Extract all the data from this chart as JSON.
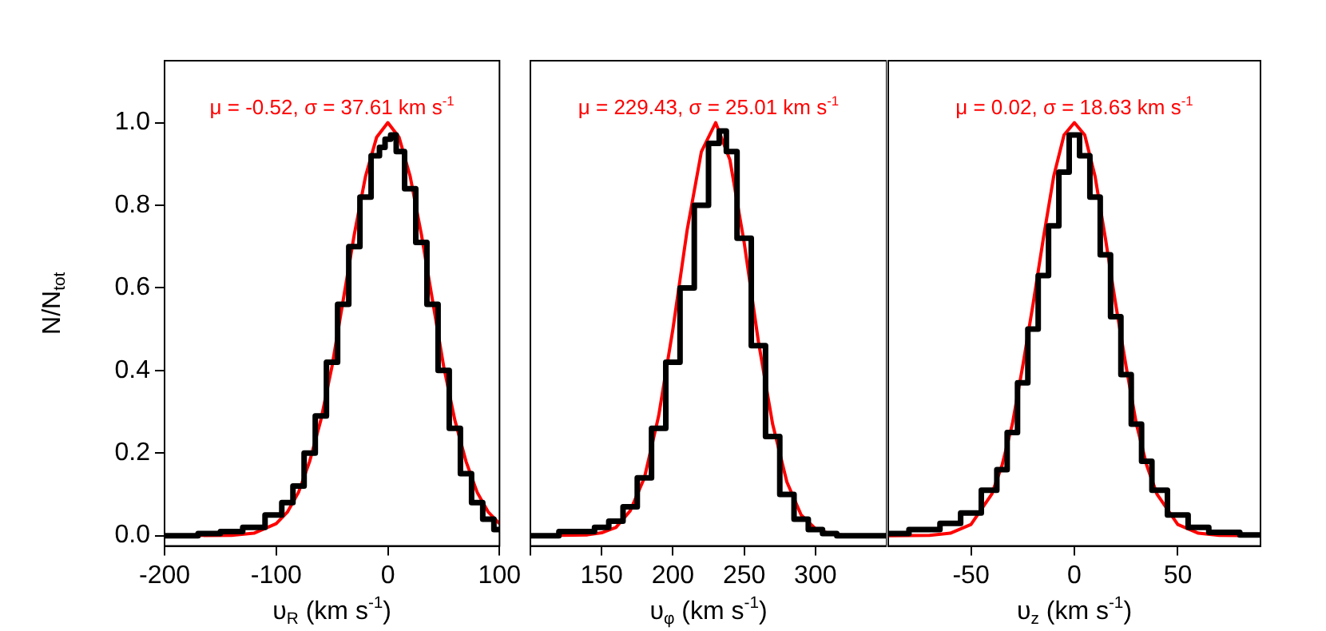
{
  "chart_data": [
    {
      "type": "step",
      "title": "μ = -0.52, σ = 37.61 km s$^{-1}$",
      "xlabel": "υ$_{R}$ (km s$^{-1}$)",
      "ylabel": "N/N$_{tot}$",
      "xlim": [
        -200,
        100
      ],
      "xticks": [
        -200,
        -100,
        0,
        100
      ],
      "ylim": [
        -0.025,
        1.15
      ],
      "yticks": [
        {
          "value": 0,
          "label": "0.0"
        },
        0.2,
        0.4,
        0.6,
        0.8,
        {
          "value": 1,
          "label": "1.0"
        }
      ],
      "grid": false,
      "series": [
        {
          "color": "#000000",
          "x": [
            -200,
            -180,
            -160,
            -140,
            -120,
            -100,
            -90,
            -80,
            -70,
            -60,
            -50,
            -40,
            -30,
            -20,
            -10,
            -5,
            0,
            5,
            10,
            20,
            30,
            40,
            50,
            60,
            70,
            80,
            90,
            100
          ],
          "values": [
            0.0,
            0.0,
            0.005,
            0.01,
            0.02,
            0.05,
            0.08,
            0.12,
            0.2,
            0.29,
            0.42,
            0.56,
            0.7,
            0.82,
            0.92,
            0.94,
            0.96,
            0.97,
            0.93,
            0.84,
            0.71,
            0.56,
            0.4,
            0.26,
            0.15,
            0.08,
            0.04,
            0.015
          ]
        },
        {
          "type": "line",
          "color": "#ff0000",
          "x": [
            -200,
            -140,
            -120,
            -100,
            -90,
            -80,
            -70,
            -60,
            -50,
            -40,
            -30,
            -20,
            -10,
            0,
            10,
            20,
            30,
            40,
            50,
            60,
            70,
            80,
            90,
            100
          ],
          "values": [
            0,
            0.001,
            0.006,
            0.029,
            0.057,
            0.105,
            0.18,
            0.28,
            0.41,
            0.57,
            0.73,
            0.87,
            0.965,
            1.0,
            0.965,
            0.87,
            0.73,
            0.57,
            0.41,
            0.28,
            0.18,
            0.105,
            0.057,
            0.029
          ]
        }
      ]
    },
    {
      "type": "step",
      "title": "μ = 229.43, σ = 25.01 km s$^{-1}$",
      "xlabel": "υ$_{φ}$ (km s$^{-1}$)",
      "xlim": [
        100,
        350
      ],
      "xticks": [
        {
          "value": 100,
          "label": null
        },
        150,
        200,
        250,
        300
      ],
      "ylim": [
        -0.025,
        1.15
      ],
      "yticks": [
        0,
        0.2,
        0.4,
        0.6,
        0.8,
        1
      ],
      "tick_labels": "x",
      "grid": false,
      "series": [
        {
          "color": "#000000",
          "x": [
            100,
            140,
            150,
            160,
            170,
            180,
            190,
            200,
            210,
            220,
            230,
            235,
            240,
            250,
            260,
            270,
            280,
            290,
            300,
            310,
            320,
            350
          ],
          "values": [
            0,
            0.01,
            0.02,
            0.035,
            0.07,
            0.14,
            0.26,
            0.42,
            0.6,
            0.8,
            0.95,
            0.98,
            0.93,
            0.72,
            0.46,
            0.24,
            0.1,
            0.04,
            0.015,
            0.005,
            0,
            0
          ]
        },
        {
          "type": "line",
          "color": "#ff0000",
          "x": [
            100,
            140,
            150,
            160,
            170,
            180,
            190,
            200,
            210,
            220,
            230,
            240,
            250,
            260,
            270,
            280,
            290,
            300,
            310,
            320,
            350
          ],
          "values": [
            0,
            0.002,
            0.007,
            0.02,
            0.06,
            0.14,
            0.29,
            0.5,
            0.74,
            0.93,
            1.0,
            0.91,
            0.71,
            0.47,
            0.27,
            0.13,
            0.05,
            0.017,
            0.005,
            0.001,
            0
          ]
        }
      ]
    },
    {
      "type": "step",
      "title": "μ = 0.02, σ = 18.63 km s$^{-1}$",
      "xlabel": "υ$_{z}$ (km s$^{-1}$)",
      "xlim": [
        -90,
        90
      ],
      "xticks": [
        -50,
        0,
        50
      ],
      "ylim": [
        -0.025,
        1.15
      ],
      "yticks": [
        0,
        0.2,
        0.4,
        0.6,
        0.8,
        1
      ],
      "tick_labels": "x",
      "grid": false,
      "series": [
        {
          "color": "#000000",
          "x": [
            -90,
            -70,
            -60,
            -50,
            -40,
            -35,
            -30,
            -25,
            -20,
            -15,
            -10,
            -5,
            0,
            5,
            10,
            15,
            20,
            25,
            30,
            35,
            40,
            50,
            60,
            70,
            90
          ],
          "values": [
            0.005,
            0.015,
            0.03,
            0.055,
            0.11,
            0.16,
            0.25,
            0.37,
            0.5,
            0.63,
            0.75,
            0.88,
            0.97,
            0.92,
            0.82,
            0.68,
            0.53,
            0.39,
            0.27,
            0.18,
            0.11,
            0.05,
            0.02,
            0.008,
            0.002
          ]
        },
        {
          "type": "line",
          "color": "#ff0000",
          "x": [
            -90,
            -70,
            -60,
            -50,
            -40,
            -35,
            -30,
            -25,
            -20,
            -15,
            -10,
            -5,
            0,
            5,
            10,
            15,
            20,
            25,
            30,
            35,
            40,
            50,
            60,
            70,
            90
          ],
          "values": [
            0,
            0.001,
            0.006,
            0.027,
            0.1,
            0.17,
            0.27,
            0.41,
            0.56,
            0.72,
            0.87,
            0.97,
            1,
            0.97,
            0.87,
            0.72,
            0.56,
            0.41,
            0.27,
            0.17,
            0.1,
            0.027,
            0.006,
            0.001,
            0
          ]
        }
      ]
    }
  ]
}
